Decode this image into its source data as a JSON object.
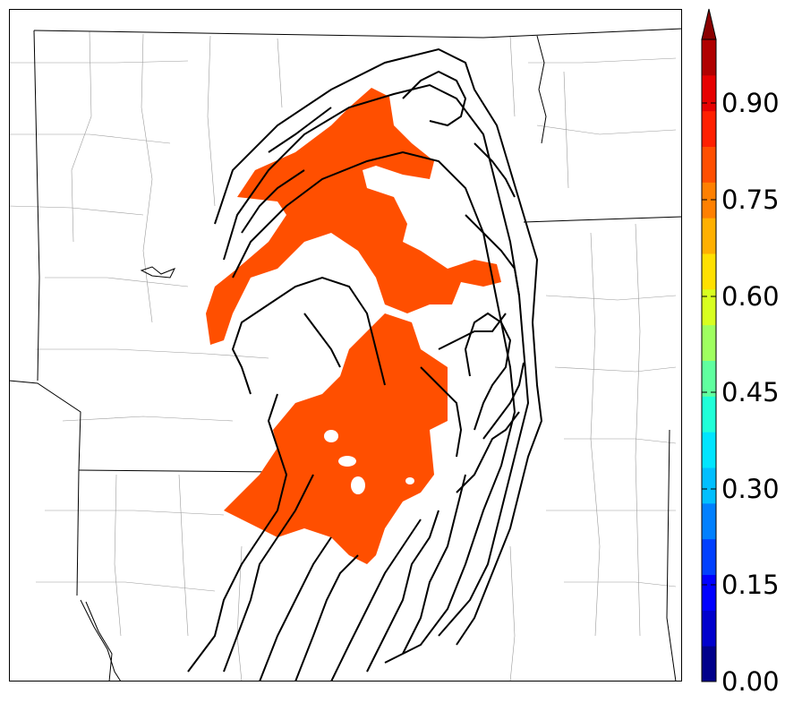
{
  "colorbar": {
    "tick_labels": [
      "0.00",
      "0.15",
      "0.30",
      "0.45",
      "0.60",
      "0.75",
      "0.90"
    ],
    "colors": [
      "#00008b",
      "#0000cd",
      "#0000ff",
      "#0040ff",
      "#0080ff",
      "#00bfff",
      "#00e5ff",
      "#20ffd8",
      "#60ff9f",
      "#9fff60",
      "#d8ff20",
      "#ffe000",
      "#ffb000",
      "#ff8000",
      "#ff4f00",
      "#ff2000",
      "#e60000",
      "#b00000",
      "#8b0000"
    ],
    "extend": "max"
  },
  "map": {
    "fill_color": "#ff4f00",
    "fill_level": "0.75–0.80",
    "contour_color": "#000000"
  }
}
